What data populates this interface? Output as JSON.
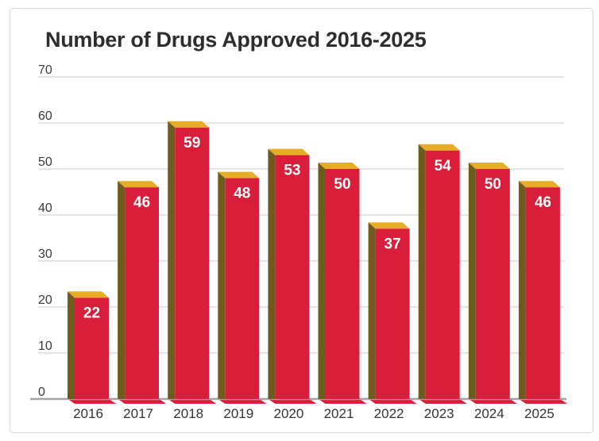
{
  "chart_data": {
    "type": "bar",
    "title": "Number of Drugs Approved 2016-2025",
    "categories": [
      "2016",
      "2017",
      "2018",
      "2019",
      "2020",
      "2021",
      "2022",
      "2023",
      "2024",
      "2025"
    ],
    "values": [
      22,
      46,
      59,
      48,
      53,
      50,
      37,
      54,
      50,
      46
    ],
    "xlabel": "",
    "ylabel": "",
    "ylim": [
      0,
      70
    ],
    "yticks": [
      0,
      10,
      20,
      30,
      40,
      50,
      60,
      70
    ],
    "grid": true,
    "legend": "none",
    "value_labels_shown": true,
    "style": "3d-extruded-bars",
    "colors": {
      "bar_front": "#d81e3b",
      "bar_top": "#e7ad27",
      "bar_side": "#6f5b1d",
      "bar_bottom_shadow": "#d81e3b",
      "value_label": "#ffffff",
      "gridline": "#cbcbcb",
      "axis_line": "#a3a3a3",
      "tick_label": "#3a3a3a",
      "category_label": "#333333",
      "title": "#2d2d2d",
      "card_border": "#d6d6d6"
    }
  }
}
